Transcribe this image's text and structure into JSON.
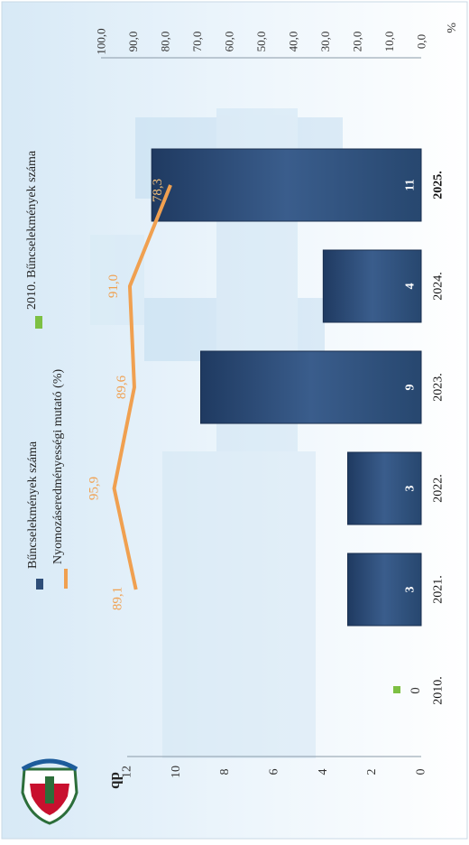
{
  "chart_data": {
    "type": "bar",
    "categories": [
      "2010.",
      "2021.",
      "2022.",
      "2023.",
      "2024.",
      "2025."
    ],
    "series": [
      {
        "name": "Bűncselekmények száma",
        "type": "bar",
        "axis": "db",
        "values": [
          null,
          3,
          3,
          9,
          4,
          11
        ],
        "labels": [
          "",
          "3",
          "3",
          "9",
          "4",
          "11"
        ],
        "color": "#2e4d78"
      },
      {
        "name": "Nyomozáseredményességi mutató (%)",
        "type": "line",
        "axis": "%",
        "values": [
          null,
          89.1,
          95.9,
          89.6,
          91.0,
          78.3
        ],
        "labels": [
          "",
          "89,1",
          "95,9",
          "89,6",
          "91,0",
          "78,3"
        ],
        "color": "#f0a050"
      },
      {
        "name": "2010. Bűncselekmények száma",
        "type": "marker",
        "axis": "db",
        "values": [
          0,
          null,
          null,
          null,
          null,
          null
        ],
        "labels": [
          "0",
          "",
          "",
          "",
          "",
          ""
        ],
        "color": "#7dc043"
      }
    ],
    "left_axis": {
      "label": "db",
      "range": [
        0,
        12
      ],
      "ticks": [
        "0",
        "2",
        "4",
        "6",
        "8",
        "10",
        "12"
      ]
    },
    "right_axis": {
      "label": "%",
      "range": [
        0,
        100
      ],
      "ticks": [
        "0,0",
        "10,0",
        "20,0",
        "30,0",
        "40,0",
        "50,0",
        "60,0",
        "70,0",
        "80,0",
        "90,0",
        "100,0"
      ]
    },
    "legend": {
      "placement": "top",
      "entries": [
        "Bűncselekmények száma",
        "Nyomozáseredményességi mutató (%)",
        "2010. Bűncselekmények száma"
      ]
    },
    "grid": false,
    "orientation": "rotated 90° clockwise"
  }
}
